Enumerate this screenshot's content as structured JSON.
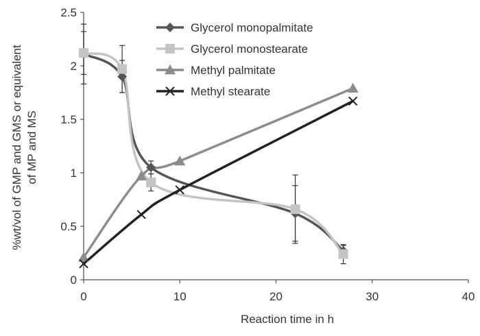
{
  "chart_data": {
    "type": "line",
    "title": "",
    "xlabel": "Reaction time in h",
    "ylabel_lines": [
      "%wt/vol of GMP and GMS or equivalent",
      "of MP and MS"
    ],
    "xlim": [
      0,
      40
    ],
    "ylim": [
      0,
      2.5
    ],
    "x_ticks": [
      0,
      10,
      20,
      30,
      40
    ],
    "y_ticks": [
      0,
      0.5,
      1,
      1.5,
      2,
      2.5
    ],
    "x_tick_labels": [
      "0",
      "10",
      "20",
      "30",
      "40"
    ],
    "y_tick_labels": [
      "0",
      "0.5",
      "1",
      "1.5",
      "2",
      "2.5"
    ],
    "grid": false,
    "legend_position": "top-center",
    "series": [
      {
        "name": "Glycerol monopalmitate",
        "marker": "diamond",
        "color": "#555555",
        "x": [
          0,
          4,
          7,
          22,
          27
        ],
        "y": [
          2.11,
          1.9,
          1.05,
          0.62,
          0.27
        ],
        "err": [
          0.28,
          0.15,
          0.06,
          0.26,
          0.05
        ]
      },
      {
        "name": "Glycerol monostearate",
        "marker": "square",
        "color": "#c4c4c4",
        "x": [
          0,
          4,
          7,
          22,
          27
        ],
        "y": [
          2.12,
          1.97,
          0.91,
          0.66,
          0.24
        ],
        "err": [
          0.2,
          0.22,
          0.08,
          0.32,
          0.09
        ]
      },
      {
        "name": "Methyl palmitate",
        "marker": "triangle",
        "color": "#8c8c8c",
        "x": [
          0,
          6,
          10,
          28
        ],
        "y": [
          0.21,
          0.97,
          1.11,
          1.79
        ],
        "err": []
      },
      {
        "name": "Methyl stearate",
        "marker": "x",
        "color": "#222222",
        "x": [
          0,
          6,
          10,
          28
        ],
        "y": [
          0.15,
          0.61,
          0.84,
          1.67
        ],
        "err": []
      }
    ]
  }
}
